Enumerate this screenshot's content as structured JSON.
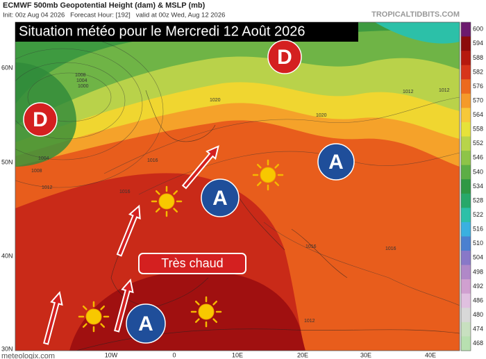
{
  "header": {
    "title": "ECMWF 500mb Geopotential Height (dam) & MSLP (mb)",
    "subtitle": "Init: 00z Aug 04 2026   Forecast Hour: [192]   valid at 00z Wed, Aug 12 2026",
    "source": "TROPICALTIDBITS.COM"
  },
  "overlay": {
    "title": "Situation météo pour le Mercredi 12 Août 2026",
    "label": "Très chaud"
  },
  "pressure_systems": [
    "D",
    "D",
    "A",
    "A",
    "A"
  ],
  "isobar_labels": [
    "1008",
    "1004",
    "1000",
    "1004",
    "1008",
    "1012",
    "1016",
    "1016",
    "1020",
    "1020",
    "1012",
    "1016",
    "1016",
    "1012",
    "1012"
  ],
  "lat_labels": [
    "60N",
    "50N",
    "40N",
    "30N"
  ],
  "lon_labels": [
    "10W",
    "0",
    "10E",
    "20E",
    "30E",
    "40E"
  ],
  "colorbar": {
    "values": [
      600,
      594,
      588,
      582,
      576,
      570,
      564,
      558,
      552,
      546,
      540,
      534,
      528,
      522,
      516,
      510,
      504,
      498,
      492,
      486,
      480,
      474,
      468
    ],
    "colors": [
      "#6c1a6e",
      "#8c0b0b",
      "#b5190f",
      "#d7351b",
      "#ec6a1e",
      "#f59a2a",
      "#f7c83a",
      "#e6e23a",
      "#b8d44a",
      "#8ec448",
      "#5cae46",
      "#2f9844",
      "#28a86a",
      "#2cc0a8",
      "#3ab0e0",
      "#4a80d0",
      "#8878c8",
      "#b088c8",
      "#d0a0d0",
      "#e0c0e0",
      "#d8d8d8",
      "#c8e0c0",
      "#b8e0b0"
    ]
  },
  "footer": "meteologix.com"
}
